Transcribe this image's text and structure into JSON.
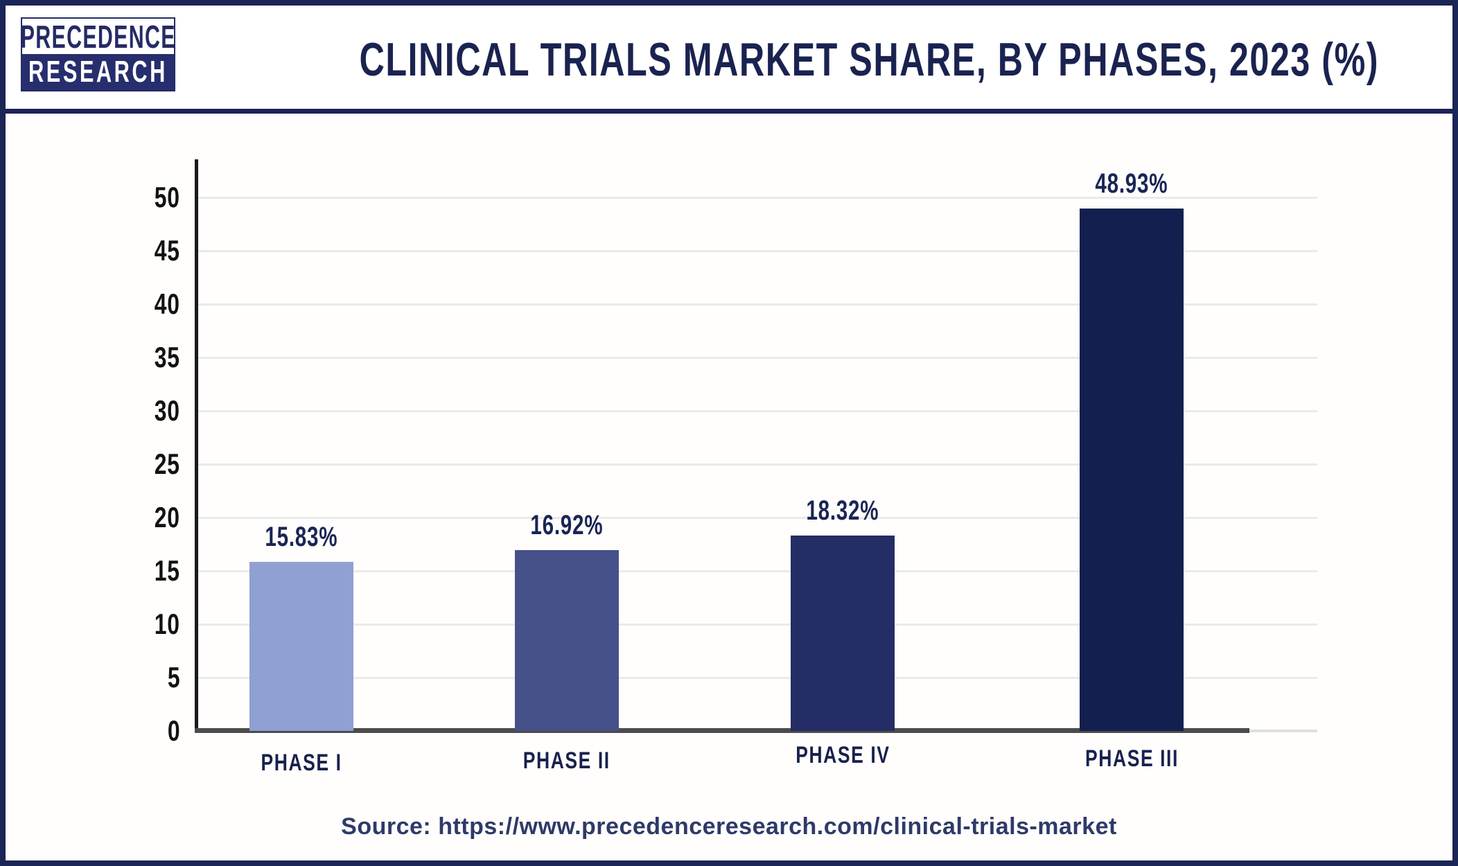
{
  "header": {
    "logo": {
      "line1": "PRECEDENCE",
      "line2": "RESEARCH"
    },
    "title": "CLINICAL TRIALS MARKET SHARE, BY PHASES, 2023 (%)"
  },
  "chart_data": {
    "type": "bar",
    "title": "Clinical Trials Market Share, By Phases, 2023 (%)",
    "categories": [
      "PHASE I",
      "PHASE II",
      "PHASE IV",
      "PHASE III"
    ],
    "values": [
      15.83,
      16.92,
      18.32,
      48.93
    ],
    "value_labels": [
      "15.83%",
      "16.92%",
      "18.32%",
      "48.93%"
    ],
    "bar_colors": [
      "#8fa0d2",
      "#46518a",
      "#242d65",
      "#13204f"
    ],
    "xlabel": "",
    "ylabel": "",
    "ylim": [
      0,
      50
    ],
    "y_ticks": [
      0,
      5,
      10,
      15,
      20,
      25,
      30,
      35,
      40,
      45,
      50
    ],
    "grid": "horizontal-light",
    "legend": "none"
  },
  "footer": {
    "source": "Source: https://www.precedenceresearch.com/clinical-trials-market"
  },
  "colors": {
    "frame_border": "#1b2556",
    "header_divider": "#1e2257",
    "title_text": "#1a2350",
    "axis_line": "#1a1a1a",
    "baseline": "#4c4c4c",
    "gridline": "#eaeaea",
    "tick_text": "#121212",
    "value_label_text": "#1a2555",
    "category_text": "#18214e",
    "source_text": "#2e3a68",
    "logo_navy": "#262e6d"
  }
}
